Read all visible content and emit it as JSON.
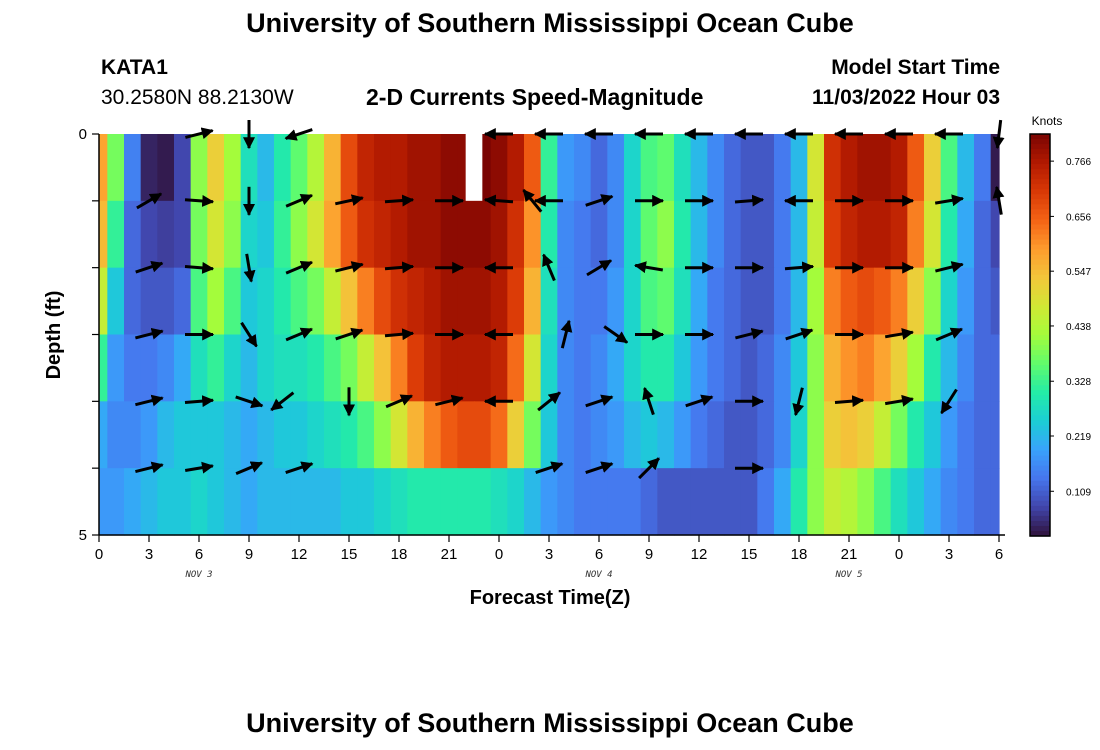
{
  "page": {
    "title_top": "University of Southern Mississippi Ocean Cube",
    "title_bottom": "University of Southern Mississippi Ocean Cube",
    "station": "KATA1",
    "coords": "30.2580N  88.2130W",
    "plot_title": "2-D Currents Speed-Magnitude",
    "model_start_label": "Model Start Time",
    "model_start_value": "11/03/2022 Hour 03"
  },
  "colors": {
    "colormap": [
      "#30123b",
      "#4145ab",
      "#4675ed",
      "#39a2fc",
      "#1bcfd4",
      "#24eca6",
      "#61fc6c",
      "#a4fc3b",
      "#d1e834",
      "#f3c63a",
      "#fe9b2d",
      "#f36315",
      "#d93806",
      "#b11901",
      "#7a0402"
    ],
    "arrow": "#000000",
    "background": "#ffffff"
  },
  "chart_data": {
    "type": "heatmap",
    "title": "2-D Currents Speed-Magnitude",
    "xlabel": "Forecast Time(Z)",
    "ylabel": "Depth (ft)",
    "x_tick_labels": [
      "0",
      "3",
      "6",
      "9",
      "12",
      "15",
      "18",
      "21",
      "0",
      "3",
      "6",
      "9",
      "12",
      "15",
      "18",
      "21",
      "0",
      "3",
      "6"
    ],
    "date_labels": [
      {
        "hour": 6,
        "text": "NOV 3"
      },
      {
        "hour": 30,
        "text": "NOV 4"
      },
      {
        "hour": 45,
        "text": "NOV 5"
      }
    ],
    "y_tick_labels": [
      "0",
      "5"
    ],
    "y_range_ft": [
      0,
      5
    ],
    "x_range_hours": [
      0,
      54
    ],
    "colorbar": {
      "unit": "Knots",
      "tick_labels": [
        "0.766",
        "0.656",
        "0.547",
        "0.438",
        "0.328",
        "0.219",
        "0.109"
      ],
      "range": [
        0.02,
        0.82
      ]
    },
    "missing": [
      {
        "hour": 22.5,
        "depth": 0
      }
    ],
    "hours": [
      0,
      1,
      2,
      3,
      4,
      5,
      6,
      7,
      8,
      9,
      10,
      11,
      12,
      13,
      14,
      15,
      16,
      17,
      18,
      19,
      20,
      21,
      22,
      23,
      24,
      25,
      26,
      27,
      28,
      29,
      30,
      31,
      32,
      33,
      34,
      35,
      36,
      37,
      38,
      39,
      40,
      41,
      42,
      43,
      44,
      45,
      46,
      47,
      48,
      49,
      50,
      51,
      52,
      53,
      54
    ],
    "depths_ft": [
      0,
      1,
      2,
      3,
      4,
      5
    ],
    "speed_knots": [
      [
        0.58,
        0.38,
        0.15,
        0.04,
        0.03,
        0.08,
        0.4,
        0.52,
        0.42,
        0.28,
        0.22,
        0.3,
        0.36,
        0.44,
        0.56,
        0.68,
        0.74,
        0.76,
        0.76,
        0.78,
        0.78,
        0.8,
        0.8,
        0.82,
        0.8,
        0.76,
        0.66,
        0.32,
        0.18,
        0.16,
        0.12,
        0.16,
        0.26,
        0.34,
        0.36,
        0.28,
        0.22,
        0.16,
        0.12,
        0.1,
        0.1,
        0.14,
        0.22,
        0.48,
        0.72,
        0.76,
        0.78,
        0.78,
        0.76,
        0.66,
        0.52,
        0.34,
        0.22,
        0.14,
        0.03
      ],
      [
        0.55,
        0.32,
        0.12,
        0.08,
        0.07,
        0.08,
        0.38,
        0.48,
        0.4,
        0.26,
        0.24,
        0.32,
        0.4,
        0.48,
        0.58,
        0.66,
        0.72,
        0.74,
        0.76,
        0.78,
        0.78,
        0.8,
        0.8,
        0.8,
        0.78,
        0.72,
        0.6,
        0.3,
        0.16,
        0.14,
        0.12,
        0.16,
        0.26,
        0.36,
        0.4,
        0.3,
        0.22,
        0.16,
        0.12,
        0.1,
        0.1,
        0.14,
        0.22,
        0.46,
        0.7,
        0.74,
        0.76,
        0.76,
        0.74,
        0.62,
        0.48,
        0.3,
        0.2,
        0.12,
        0.08
      ],
      [
        0.46,
        0.24,
        0.12,
        0.1,
        0.1,
        0.12,
        0.34,
        0.42,
        0.34,
        0.24,
        0.26,
        0.3,
        0.34,
        0.38,
        0.46,
        0.54,
        0.62,
        0.68,
        0.72,
        0.74,
        0.76,
        0.78,
        0.78,
        0.78,
        0.76,
        0.7,
        0.56,
        0.28,
        0.16,
        0.14,
        0.14,
        0.18,
        0.26,
        0.34,
        0.36,
        0.28,
        0.2,
        0.14,
        0.12,
        0.1,
        0.1,
        0.14,
        0.22,
        0.42,
        0.62,
        0.66,
        0.68,
        0.66,
        0.62,
        0.52,
        0.4,
        0.26,
        0.18,
        0.12,
        0.1
      ],
      [
        0.32,
        0.18,
        0.14,
        0.14,
        0.16,
        0.2,
        0.28,
        0.32,
        0.26,
        0.22,
        0.26,
        0.28,
        0.28,
        0.3,
        0.34,
        0.38,
        0.46,
        0.54,
        0.62,
        0.7,
        0.74,
        0.76,
        0.76,
        0.76,
        0.74,
        0.64,
        0.48,
        0.26,
        0.16,
        0.14,
        0.16,
        0.2,
        0.26,
        0.3,
        0.3,
        0.24,
        0.18,
        0.14,
        0.12,
        0.1,
        0.12,
        0.16,
        0.24,
        0.4,
        0.56,
        0.6,
        0.62,
        0.58,
        0.52,
        0.42,
        0.3,
        0.22,
        0.16,
        0.12,
        0.12
      ],
      [
        0.2,
        0.16,
        0.16,
        0.18,
        0.22,
        0.24,
        0.24,
        0.24,
        0.22,
        0.2,
        0.22,
        0.24,
        0.24,
        0.26,
        0.28,
        0.3,
        0.34,
        0.4,
        0.48,
        0.56,
        0.62,
        0.66,
        0.68,
        0.68,
        0.64,
        0.52,
        0.38,
        0.24,
        0.16,
        0.14,
        0.16,
        0.18,
        0.22,
        0.24,
        0.22,
        0.18,
        0.14,
        0.12,
        0.1,
        0.1,
        0.12,
        0.16,
        0.26,
        0.4,
        0.52,
        0.54,
        0.52,
        0.46,
        0.38,
        0.3,
        0.24,
        0.18,
        0.14,
        0.12,
        0.12
      ],
      [
        0.18,
        0.18,
        0.2,
        0.22,
        0.24,
        0.24,
        0.26,
        0.24,
        0.22,
        0.2,
        0.22,
        0.22,
        0.22,
        0.22,
        0.22,
        0.24,
        0.24,
        0.26,
        0.28,
        0.3,
        0.3,
        0.3,
        0.3,
        0.3,
        0.28,
        0.26,
        0.22,
        0.18,
        0.16,
        0.14,
        0.14,
        0.14,
        0.14,
        0.12,
        0.1,
        0.1,
        0.1,
        0.1,
        0.1,
        0.1,
        0.14,
        0.2,
        0.3,
        0.4,
        0.46,
        0.44,
        0.4,
        0.34,
        0.28,
        0.24,
        0.2,
        0.16,
        0.14,
        0.12,
        0.12
      ]
    ],
    "vectors": [
      [
        {
          "hour": 6,
          "u": 0.6,
          "v": 0.15
        },
        {
          "hour": 9,
          "u": 0.0,
          "v": -0.6
        },
        {
          "hour": 12,
          "u": -0.6,
          "v": -0.2
        },
        {
          "hour": 24,
          "u": -0.8,
          "v": 0.0
        },
        {
          "hour": 27,
          "u": -0.8,
          "v": 0.0
        },
        {
          "hour": 30,
          "u": -0.8,
          "v": 0.0
        },
        {
          "hour": 33,
          "u": -0.8,
          "v": 0.0
        },
        {
          "hour": 36,
          "u": -0.8,
          "v": 0.0
        },
        {
          "hour": 39,
          "u": -0.8,
          "v": 0.0
        },
        {
          "hour": 42,
          "u": -0.8,
          "v": 0.0
        },
        {
          "hour": 45,
          "u": -0.8,
          "v": 0.0
        },
        {
          "hour": 48,
          "u": -0.8,
          "v": 0.0
        },
        {
          "hour": 51,
          "u": -0.8,
          "v": 0.0
        },
        {
          "hour": 54,
          "u": -0.1,
          "v": -0.8
        }
      ],
      [
        {
          "hour": 3,
          "u": 0.6,
          "v": 0.35
        },
        {
          "hour": 6,
          "u": 0.7,
          "v": -0.05
        },
        {
          "hour": 9,
          "u": 0.0,
          "v": -0.65
        },
        {
          "hour": 12,
          "u": 0.6,
          "v": 0.25
        },
        {
          "hour": 15,
          "u": 0.7,
          "v": 0.15
        },
        {
          "hour": 18,
          "u": 0.7,
          "v": 0.05
        },
        {
          "hour": 21,
          "u": 0.7,
          "v": 0.0
        },
        {
          "hour": 24,
          "u": -0.7,
          "v": 0.05
        },
        {
          "hour": 27,
          "u": -0.6,
          "v": 0.0
        },
        {
          "hour": 26,
          "u": -0.45,
          "v": 0.55
        },
        {
          "hour": 30,
          "u": 0.6,
          "v": 0.2
        },
        {
          "hour": 33,
          "u": 0.6,
          "v": 0.0
        },
        {
          "hour": 36,
          "u": 0.6,
          "v": 0.0
        },
        {
          "hour": 39,
          "u": 0.6,
          "v": 0.05
        },
        {
          "hour": 42,
          "u": -0.6,
          "v": 0.0
        },
        {
          "hour": 45,
          "u": 0.6,
          "v": 0.0
        },
        {
          "hour": 48,
          "u": 0.6,
          "v": 0.0
        },
        {
          "hour": 51,
          "u": 0.6,
          "v": 0.1
        },
        {
          "hour": 54,
          "u": -0.1,
          "v": 0.6
        }
      ],
      [
        {
          "hour": 3,
          "u": 0.6,
          "v": 0.2
        },
        {
          "hour": 6,
          "u": 0.6,
          "v": -0.05
        },
        {
          "hour": 9,
          "u": 0.1,
          "v": -0.6
        },
        {
          "hour": 12,
          "u": 0.6,
          "v": 0.25
        },
        {
          "hour": 15,
          "u": 0.6,
          "v": 0.15
        },
        {
          "hour": 18,
          "u": 0.6,
          "v": 0.05
        },
        {
          "hour": 21,
          "u": 0.6,
          "v": 0.0
        },
        {
          "hour": 24,
          "u": -0.6,
          "v": 0.0
        },
        {
          "hour": 27,
          "u": -0.25,
          "v": 0.6
        },
        {
          "hour": 30,
          "u": 0.5,
          "v": 0.3
        },
        {
          "hour": 33,
          "u": -0.6,
          "v": 0.1
        },
        {
          "hour": 36,
          "u": 0.6,
          "v": 0.0
        },
        {
          "hour": 39,
          "u": 0.6,
          "v": 0.0
        },
        {
          "hour": 42,
          "u": 0.6,
          "v": 0.05
        },
        {
          "hour": 45,
          "u": 0.6,
          "v": 0.0
        },
        {
          "hour": 48,
          "u": 0.6,
          "v": 0.0
        },
        {
          "hour": 51,
          "u": 0.6,
          "v": 0.15
        }
      ],
      [
        {
          "hour": 3,
          "u": 0.6,
          "v": 0.15
        },
        {
          "hour": 6,
          "u": 0.6,
          "v": 0.0
        },
        {
          "hour": 9,
          "u": 0.35,
          "v": -0.55
        },
        {
          "hour": 12,
          "u": 0.6,
          "v": 0.25
        },
        {
          "hour": 15,
          "u": 0.6,
          "v": 0.2
        },
        {
          "hour": 18,
          "u": 0.6,
          "v": 0.05
        },
        {
          "hour": 21,
          "u": 0.6,
          "v": 0.0
        },
        {
          "hour": 24,
          "u": -0.6,
          "v": 0.0
        },
        {
          "hour": 28,
          "u": 0.15,
          "v": 0.6
        },
        {
          "hour": 31,
          "u": 0.5,
          "v": -0.35
        },
        {
          "hour": 33,
          "u": 0.6,
          "v": 0.0
        },
        {
          "hour": 36,
          "u": 0.6,
          "v": 0.0
        },
        {
          "hour": 39,
          "u": 0.6,
          "v": 0.15
        },
        {
          "hour": 42,
          "u": 0.6,
          "v": 0.2
        },
        {
          "hour": 45,
          "u": 0.6,
          "v": 0.0
        },
        {
          "hour": 48,
          "u": 0.6,
          "v": 0.1
        },
        {
          "hour": 51,
          "u": 0.6,
          "v": 0.25
        }
      ],
      [
        {
          "hour": 3,
          "u": 0.6,
          "v": 0.15
        },
        {
          "hour": 6,
          "u": 0.6,
          "v": 0.05
        },
        {
          "hour": 9,
          "u": 0.6,
          "v": -0.2
        },
        {
          "hour": 11,
          "u": -0.45,
          "v": -0.35
        },
        {
          "hour": 15,
          "u": 0.0,
          "v": -0.65
        },
        {
          "hour": 18,
          "u": 0.6,
          "v": 0.25
        },
        {
          "hour": 21,
          "u": 0.6,
          "v": 0.15
        },
        {
          "hour": 24,
          "u": -0.6,
          "v": 0.0
        },
        {
          "hour": 27,
          "u": 0.5,
          "v": 0.4
        },
        {
          "hour": 30,
          "u": 0.6,
          "v": 0.2
        },
        {
          "hour": 33,
          "u": -0.2,
          "v": 0.6
        },
        {
          "hour": 36,
          "u": 0.6,
          "v": 0.2
        },
        {
          "hour": 39,
          "u": 0.6,
          "v": 0.0
        },
        {
          "hour": 42,
          "u": -0.15,
          "v": -0.6
        },
        {
          "hour": 45,
          "u": 0.6,
          "v": 0.05
        },
        {
          "hour": 48,
          "u": 0.6,
          "v": 0.1
        },
        {
          "hour": 51,
          "u": -0.35,
          "v": -0.55
        }
      ],
      [
        {
          "hour": 3,
          "u": 0.6,
          "v": 0.15
        },
        {
          "hour": 6,
          "u": 0.6,
          "v": 0.1
        },
        {
          "hour": 9,
          "u": 0.6,
          "v": 0.25
        },
        {
          "hour": 12,
          "u": 0.6,
          "v": 0.2
        },
        {
          "hour": 27,
          "u": 0.6,
          "v": 0.2
        },
        {
          "hour": 30,
          "u": 0.6,
          "v": 0.2
        },
        {
          "hour": 33,
          "u": 0.45,
          "v": 0.45
        },
        {
          "hour": 39,
          "u": 0.6,
          "v": 0.0
        }
      ]
    ]
  }
}
